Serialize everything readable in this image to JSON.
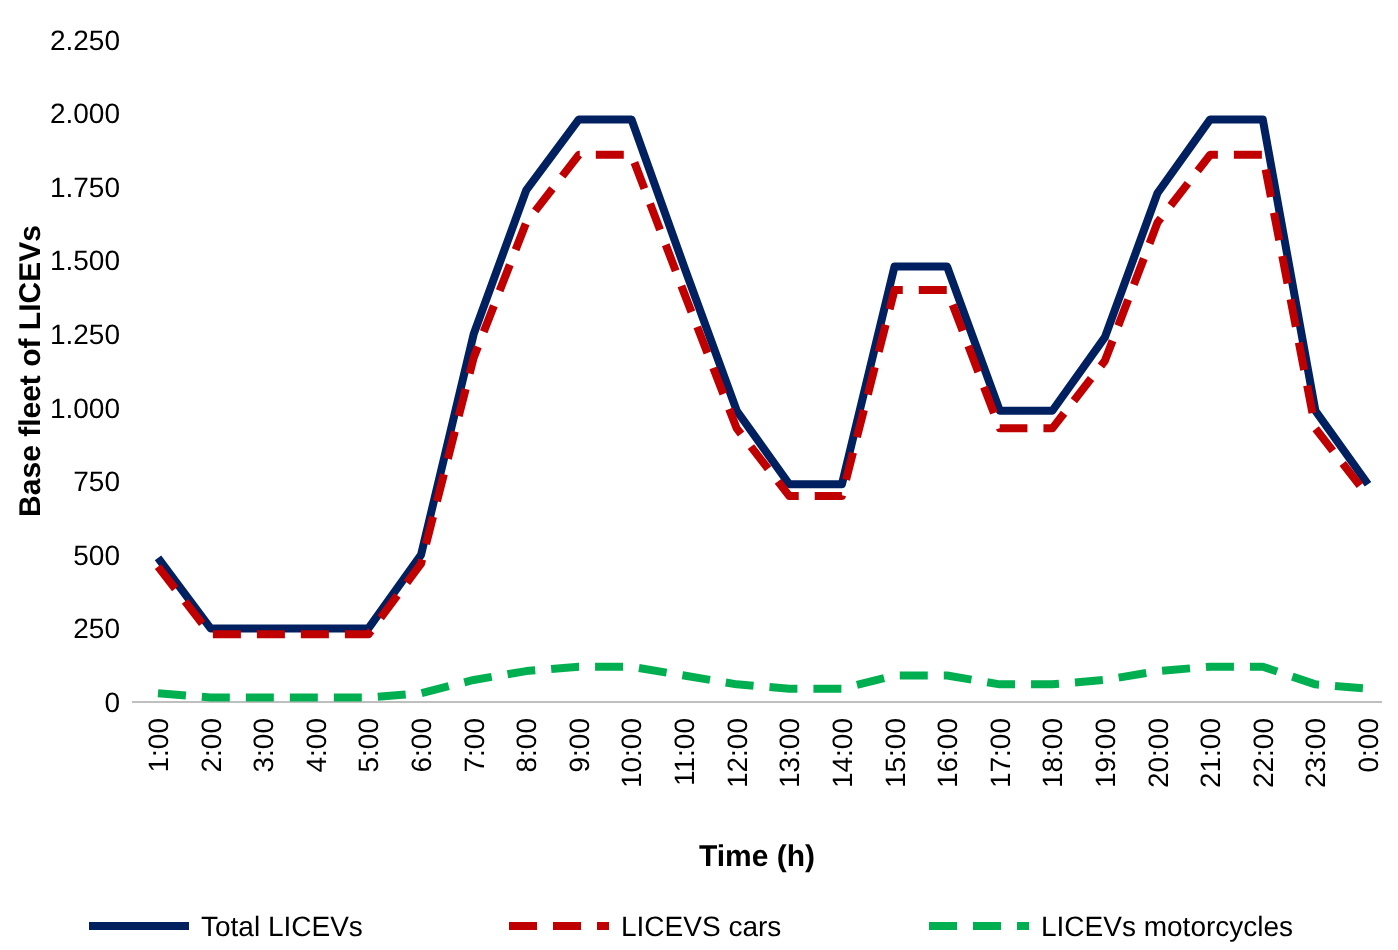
{
  "chart_data": {
    "type": "line",
    "xlabel": "Time (h)",
    "ylabel": "Base fleet of LICEVs",
    "categories": [
      "1:00",
      "2:00",
      "3:00",
      "4:00",
      "5:00",
      "6:00",
      "7:00",
      "8:00",
      "9:00",
      "10:00",
      "11:00",
      "12:00",
      "13:00",
      "14:00",
      "15:00",
      "16:00",
      "17:00",
      "18:00",
      "19:00",
      "20:00",
      "21:00",
      "22:00",
      "23:00",
      "0:00"
    ],
    "ylim": [
      0,
      2250
    ],
    "yticks": [
      {
        "value": 0,
        "label": "0"
      },
      {
        "value": 250,
        "label": "250"
      },
      {
        "value": 500,
        "label": "500"
      },
      {
        "value": 750,
        "label": "750"
      },
      {
        "value": 1000,
        "label": "1.000"
      },
      {
        "value": 1250,
        "label": "1.250"
      },
      {
        "value": 1500,
        "label": "1.500"
      },
      {
        "value": 1750,
        "label": "1.750"
      },
      {
        "value": 2000,
        "label": "2.000"
      },
      {
        "value": 2250,
        "label": "2.250"
      }
    ],
    "legend": "bottom",
    "series": [
      {
        "name": "Total LICEVs",
        "color": "#002060",
        "line_style": "solid",
        "values": [
          490,
          250,
          250,
          250,
          250,
          500,
          1250,
          1740,
          1980,
          1980,
          1480,
          990,
          740,
          740,
          1480,
          1480,
          990,
          990,
          1240,
          1730,
          1980,
          1980,
          990,
          740
        ]
      },
      {
        "name": "LICEVS cars",
        "color": "#c00000",
        "line_style": "dashed",
        "values": [
          460,
          230,
          230,
          230,
          230,
          470,
          1170,
          1630,
          1860,
          1860,
          1390,
          930,
          700,
          700,
          1400,
          1400,
          930,
          930,
          1160,
          1630,
          1860,
          1860,
          930,
          700
        ]
      },
      {
        "name": "LICEVs motorcycles",
        "color": "#00b050",
        "line_style": "dashed",
        "values": [
          30,
          15,
          15,
          15,
          15,
          30,
          75,
          105,
          120,
          120,
          90,
          60,
          45,
          45,
          90,
          90,
          60,
          60,
          75,
          105,
          120,
          120,
          60,
          45
        ]
      }
    ]
  }
}
